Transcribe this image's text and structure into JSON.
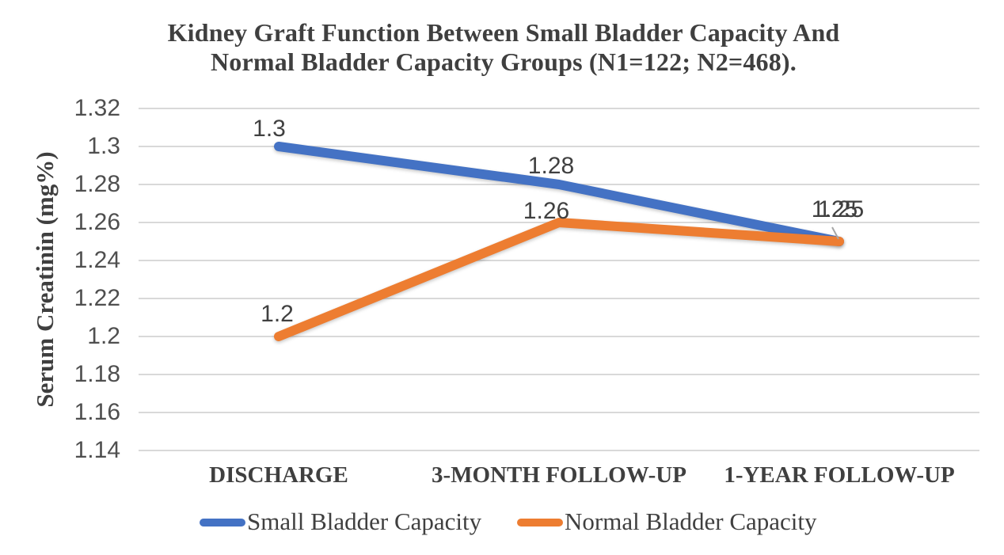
{
  "chart_data": {
    "type": "line",
    "title": "Kidney Graft Function Between Small Bladder Capacity And Normal Bladder Capacity Groups (N1=122; N2=468).",
    "title_lines": [
      "Kidney Graft Function Between Small Bladder Capacity And",
      "Normal Bladder Capacity Groups (N1=122; N2=468)."
    ],
    "ylabel": "Serum Creatinin (mg%)",
    "xlabel": "",
    "categories": [
      "DISCHARGE",
      "3-MONTH FOLLOW-UP",
      "1-YEAR FOLLOW-UP"
    ],
    "series": [
      {
        "name": "Small Bladder Capacity",
        "color": "#4472C4",
        "values": [
          1.3,
          1.28,
          1.25
        ]
      },
      {
        "name": "Normal Bladder Capacity",
        "color": "#ED7D31",
        "values": [
          1.2,
          1.26,
          1.25
        ]
      }
    ],
    "yticks": [
      1.32,
      1.3,
      1.28,
      1.26,
      1.24,
      1.22,
      1.2,
      1.18,
      1.16,
      1.14
    ],
    "ylim": [
      1.14,
      1.32
    ],
    "grid": true,
    "data_labels": true,
    "legend_position": "bottom"
  },
  "colors": {
    "gridline": "#D9D9D9",
    "title_text": "#3F3F3F",
    "tick_text": "#4F4F4F",
    "label_text": "#404040"
  }
}
